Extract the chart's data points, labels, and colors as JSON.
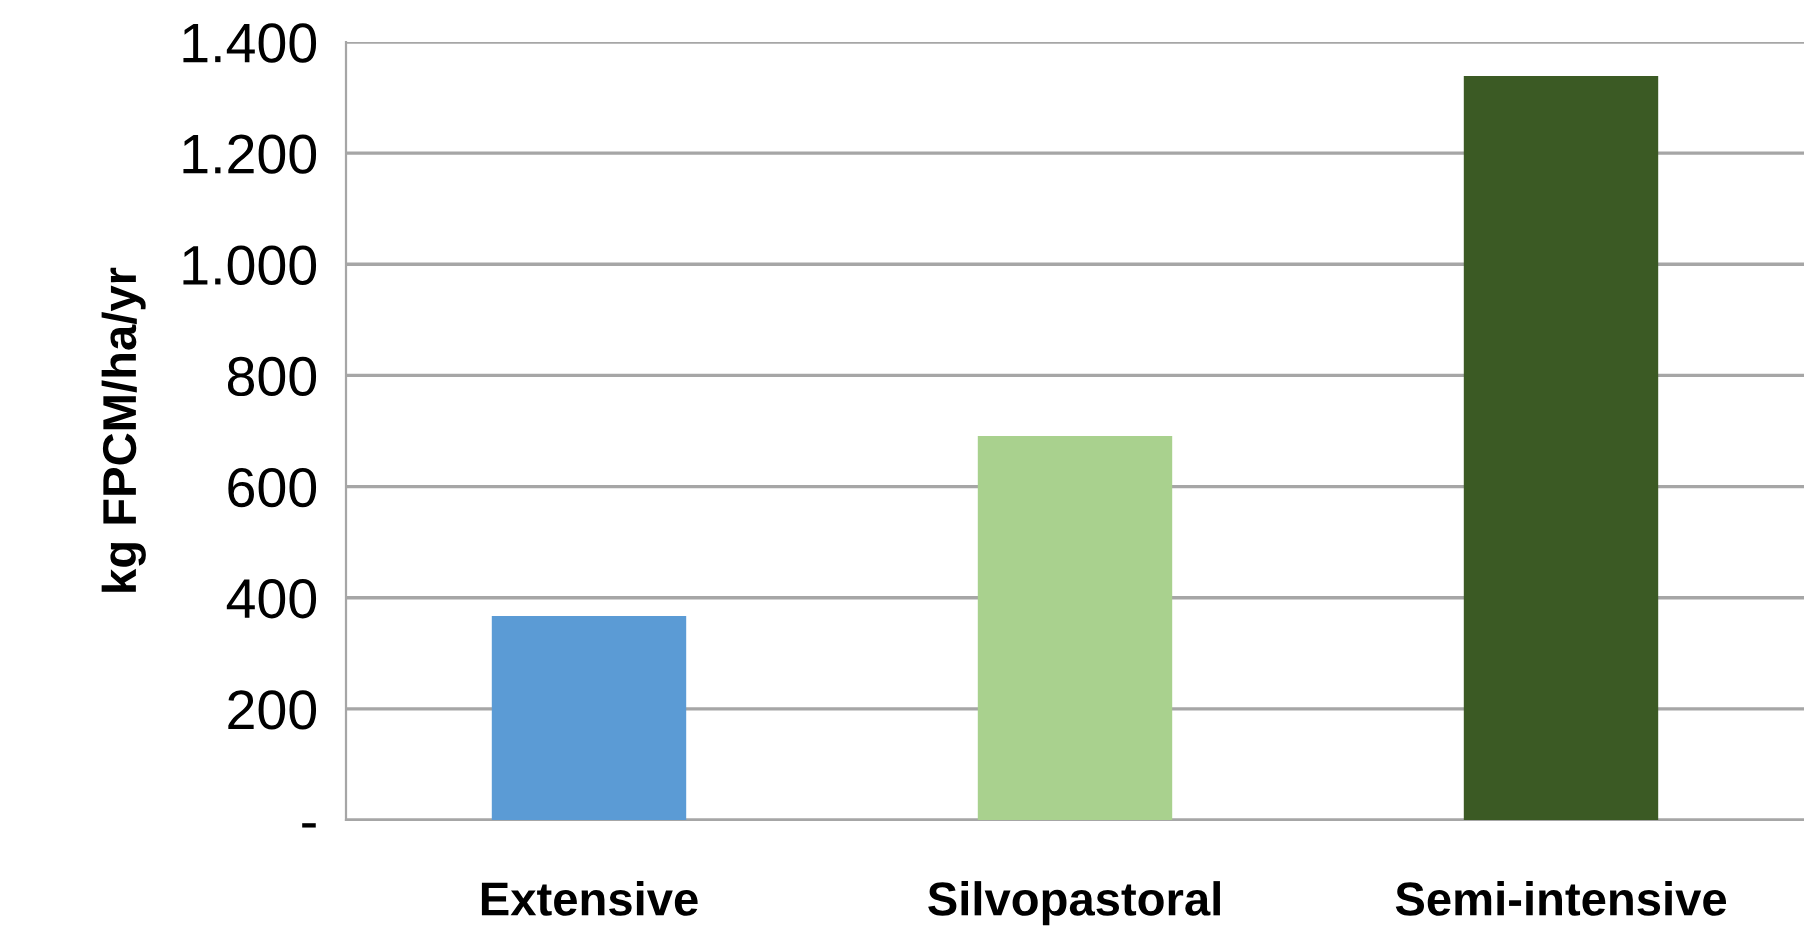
{
  "chart_data": {
    "type": "bar",
    "ylabel": "kg FPCM/ha/yr",
    "categories": [
      "Extensive",
      "Silvopastoral",
      "Semi-intensive"
    ],
    "values": [
      367,
      691,
      1339
    ],
    "colors": [
      "#5b9bd5",
      "#a9d18e",
      "#3b5a24"
    ],
    "ylim": [
      0,
      1400
    ],
    "yticks": [
      {
        "value": 0,
        "label": "-"
      },
      {
        "value": 200,
        "label": "200"
      },
      {
        "value": 400,
        "label": "400"
      },
      {
        "value": 600,
        "label": "600"
      },
      {
        "value": 800,
        "label": "800"
      },
      {
        "value": 1000,
        "label": "1.000"
      },
      {
        "value": 1200,
        "label": "1.200"
      },
      {
        "value": 1400,
        "label": "1.400"
      }
    ],
    "grid": "y",
    "legend": false
  }
}
